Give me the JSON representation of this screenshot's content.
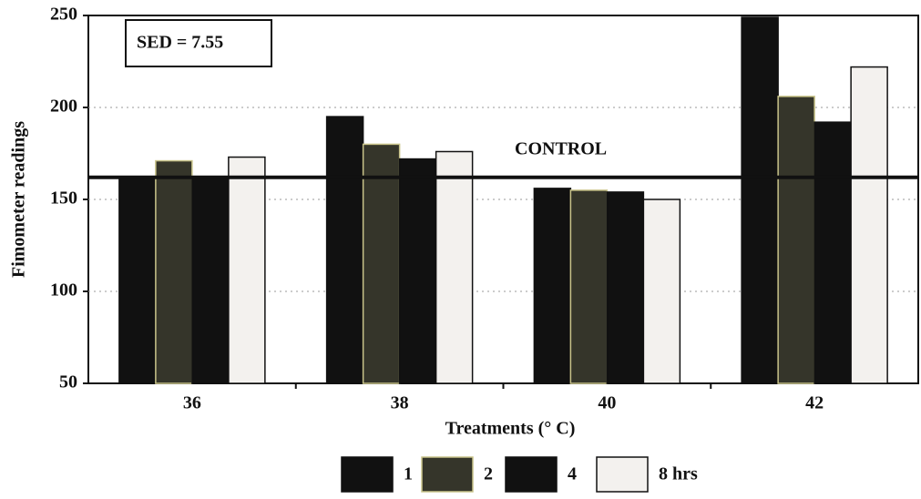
{
  "chart_data": {
    "type": "bar",
    "y_label": "Fimometer readings",
    "x_label": "Treatments (° C)",
    "annotation": "SED = 7.55",
    "control_label": "CONTROL",
    "control_value": 162,
    "categories": [
      "36",
      "38",
      "40",
      "42"
    ],
    "series": [
      {
        "name": "1",
        "color": "#111111",
        "values": [
          162,
          195,
          156,
          249
        ]
      },
      {
        "name": "2",
        "color": "#35352a",
        "values": [
          171,
          180,
          155,
          206
        ]
      },
      {
        "name": "4",
        "color": "#111111",
        "values": [
          162,
          172,
          154,
          192
        ]
      },
      {
        "name": "8 hrs",
        "color": "#f3f1ee",
        "values": [
          173,
          176,
          150,
          222
        ]
      }
    ],
    "ylim": [
      50,
      250
    ],
    "yticks": [
      50,
      100,
      150,
      200,
      250
    ],
    "grid": true
  }
}
